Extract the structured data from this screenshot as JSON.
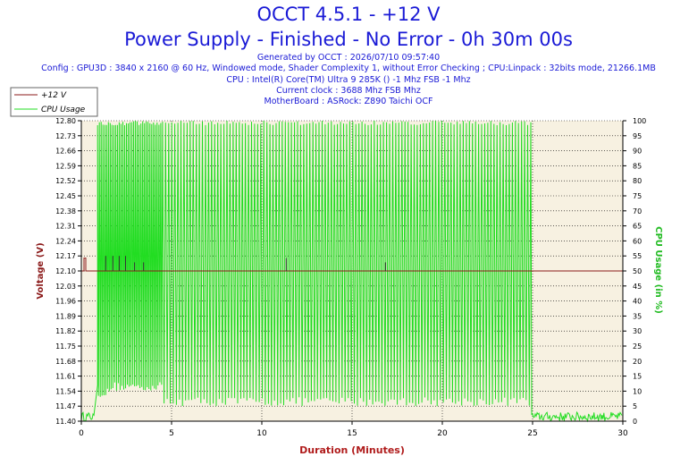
{
  "header": {
    "title": "OCCT 4.5.1 - +12 V",
    "subtitle": "Power Supply - Finished - No Error - 0h 30m 00s",
    "info_lines": [
      "Generated by OCCT : 2026/07/10 09:57:40",
      "Config : GPU3D : 3840 x 2160 @ 60 Hz, Windowed mode, Shader Complexity 1, without Error Checking ; CPU:Linpack : 32bits mode, 21266.1MB",
      "CPU : Intel(R) Core(TM) Ultra 9 285K () -1 Mhz FSB -1 Mhz",
      "Current clock : 3688 Mhz FSB  Mhz",
      "MotherBoard : ASRock: Z890 Taichi OCF"
    ]
  },
  "colors": {
    "title": "#1a1ad6",
    "voltage_line": "#8b1a1a",
    "cpu_line": "#22dd22",
    "plot_bg": "#f7f1e1",
    "axis_label_left": "#8b1a1a",
    "axis_label_right": "#22bb22",
    "axis_label_x": "#b01c1c"
  },
  "chart_data": {
    "type": "line",
    "xlabel": "Duration (Minutes)",
    "ylabel_left": "Voltage (V)",
    "ylabel_right": "CPU Usage (in %)",
    "xlim": [
      0,
      30
    ],
    "ylim_left": [
      11.4,
      12.8
    ],
    "ylim_right": [
      0,
      100
    ],
    "x_ticks": [
      0,
      5,
      10,
      15,
      20,
      25,
      30
    ],
    "y_ticks_left": [
      "11.40",
      "11.47",
      "11.54",
      "11.61",
      "11.68",
      "11.75",
      "11.82",
      "11.89",
      "11.96",
      "12.03",
      "12.10",
      "12.17",
      "12.24",
      "12.31",
      "12.38",
      "12.45",
      "12.52",
      "12.59",
      "12.66",
      "12.73",
      "12.80"
    ],
    "y_ticks_right": [
      0,
      5,
      10,
      15,
      20,
      25,
      30,
      35,
      40,
      45,
      50,
      55,
      60,
      65,
      70,
      75,
      80,
      85,
      90,
      95,
      100
    ],
    "grid": true,
    "legend_position": "top-left",
    "series": [
      {
        "name": "+12 V",
        "axis": "left",
        "x": [
          0,
          0.15,
          0.15,
          0.25,
          0.25,
          30
        ],
        "values": [
          12.1,
          12.1,
          12.16,
          12.16,
          12.1,
          12.1
        ],
        "spikes": [
          {
            "x": 1.35,
            "value": 12.17
          },
          {
            "x": 1.75,
            "value": 12.17
          },
          {
            "x": 2.1,
            "value": 12.17
          },
          {
            "x": 2.45,
            "value": 12.17
          },
          {
            "x": 2.95,
            "value": 12.14
          },
          {
            "x": 3.45,
            "value": 12.14
          },
          {
            "x": 11.35,
            "value": 12.16
          },
          {
            "x": 16.85,
            "value": 12.14
          }
        ]
      },
      {
        "name": "CPU Usage",
        "axis": "right",
        "segments": [
          {
            "x_start": 0.0,
            "x_end": 0.7,
            "pattern": "noise",
            "low": 0,
            "high": 3
          },
          {
            "x_start": 0.7,
            "x_end": 0.9,
            "pattern": "ramp",
            "low": 2,
            "high": 12
          },
          {
            "x_start": 0.9,
            "x_end": 1.6,
            "pattern": "oscillation",
            "low": 8,
            "high": 100,
            "period": 0.1
          },
          {
            "x_start": 1.6,
            "x_end": 4.5,
            "pattern": "oscillation",
            "low": 10,
            "high": 100,
            "period": 0.1
          },
          {
            "x_start": 4.5,
            "x_end": 24.95,
            "pattern": "oscillation",
            "low": 5,
            "high": 100,
            "period": 0.17
          },
          {
            "x_start": 24.95,
            "x_end": 30.0,
            "pattern": "noise",
            "low": 0,
            "high": 3
          }
        ]
      }
    ]
  }
}
